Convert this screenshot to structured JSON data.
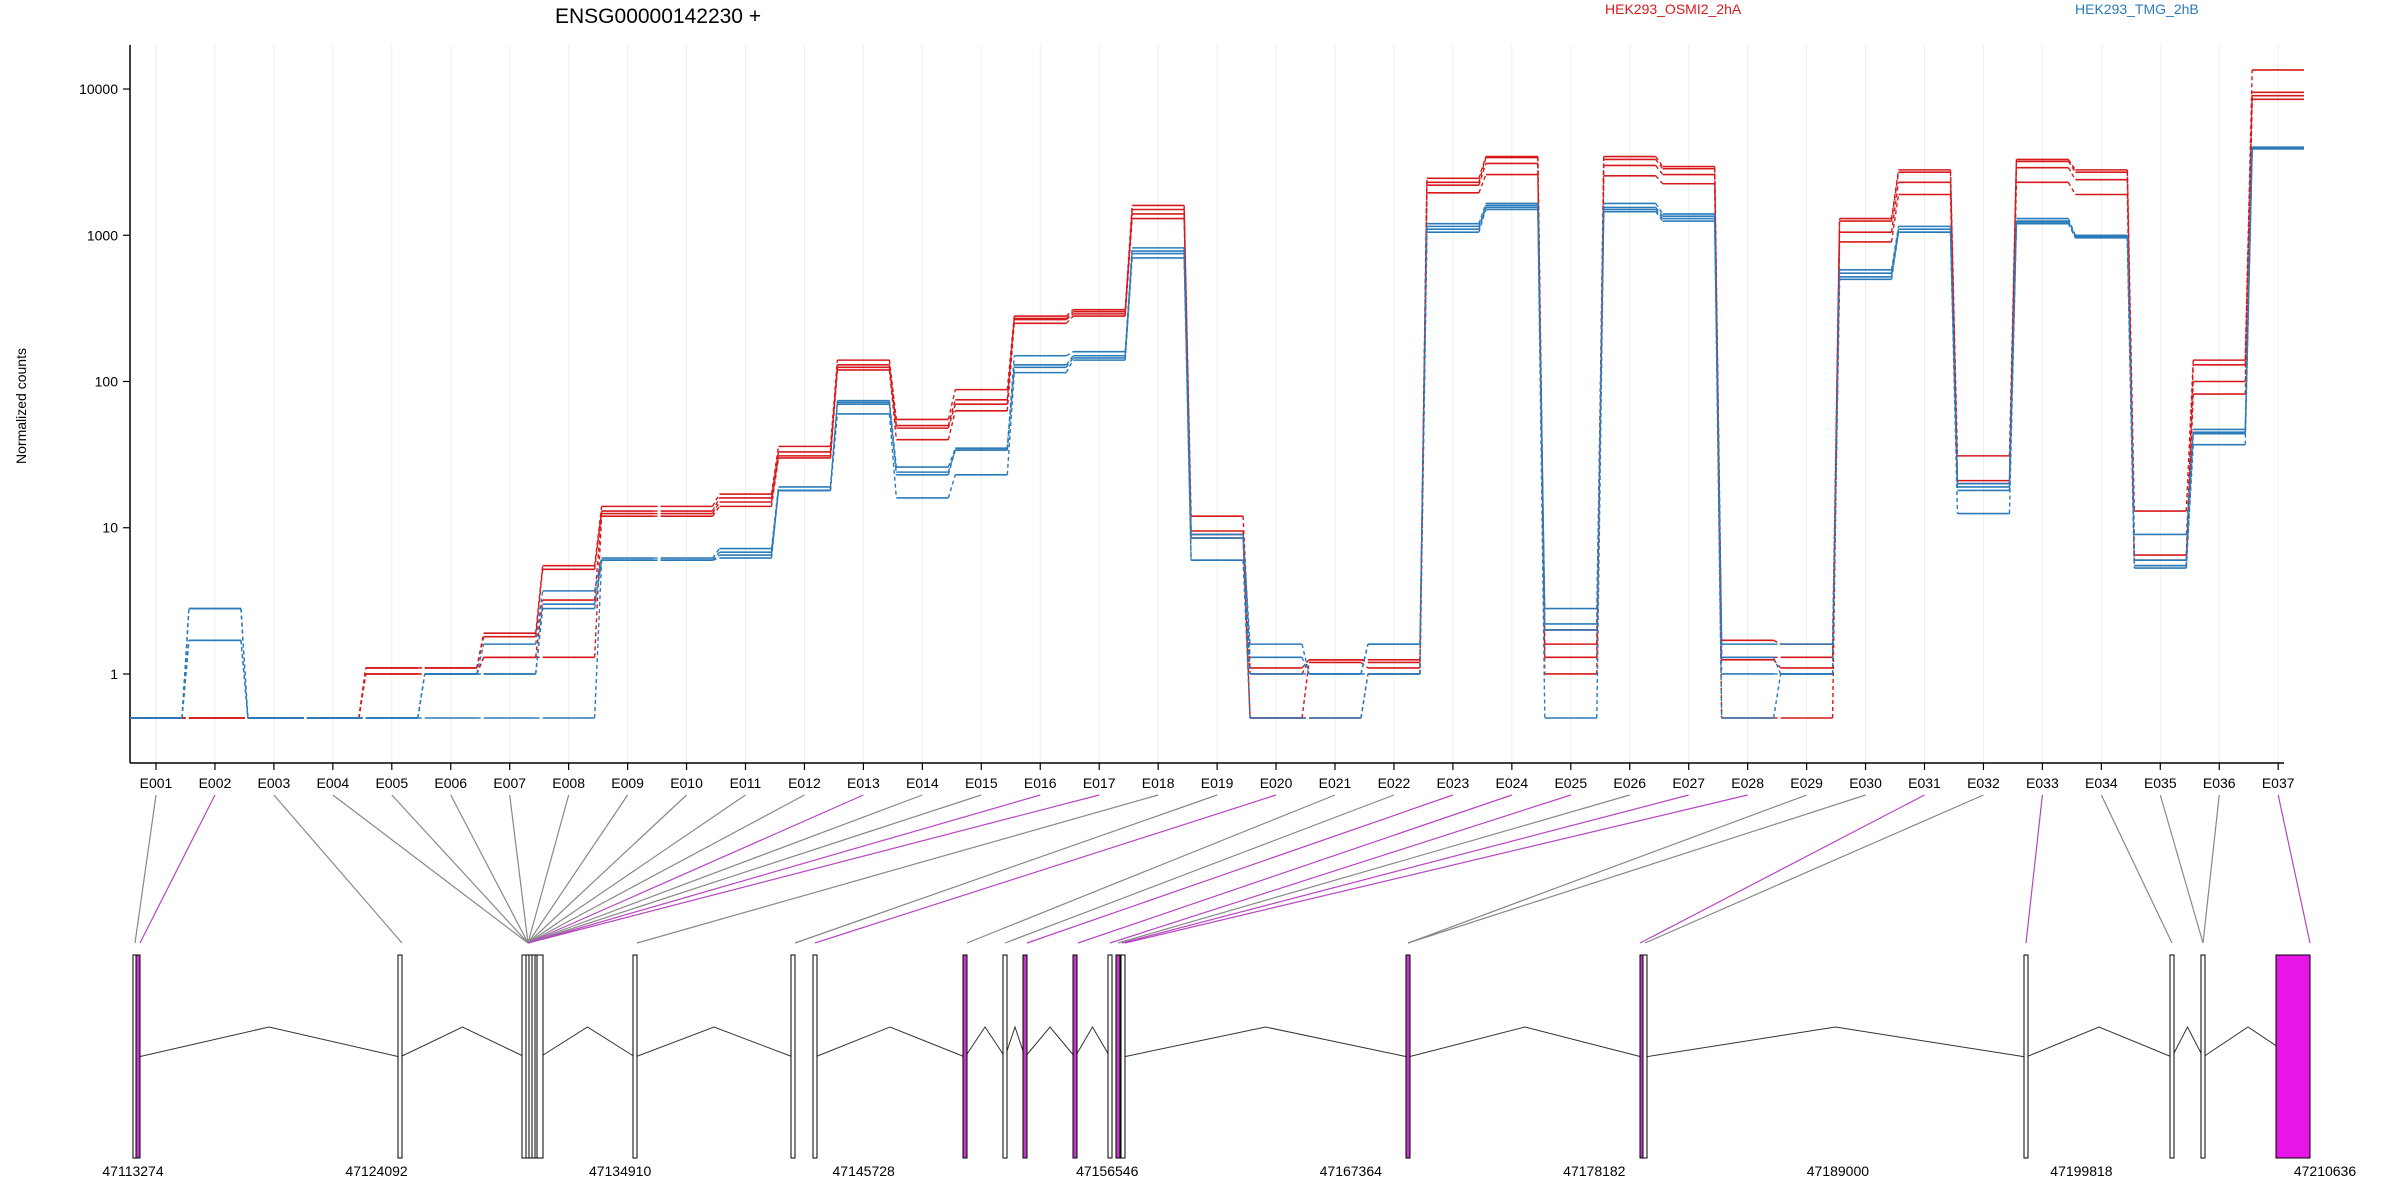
{
  "chart_data": {
    "type": "line",
    "title": "ENSG00000142230 +",
    "ylabel": "Normalized counts",
    "yscale": "log",
    "y_ticks": [
      1,
      10,
      100,
      1000,
      10000
    ],
    "y_tick_labels": [
      "1",
      "10",
      "100",
      "1000",
      "10000"
    ],
    "categories": [
      "E001",
      "E002",
      "E003",
      "E004",
      "E005",
      "E006",
      "E007",
      "E008",
      "E009",
      "E010",
      "E011",
      "E012",
      "E013",
      "E014",
      "E015",
      "E016",
      "E017",
      "E018",
      "E019",
      "E020",
      "E021",
      "E022",
      "E023",
      "E024",
      "E025",
      "E026",
      "E027",
      "E028",
      "E029",
      "E030",
      "E031",
      "E032",
      "E033",
      "E034",
      "E035",
      "E036",
      "E037"
    ],
    "legend": [
      {
        "name": "HEK293_OSMI2_2hA",
        "color": "#d7191c"
      },
      {
        "name": "HEK293_TMG_2hB",
        "color": "#2b7bba"
      }
    ],
    "series": [
      {
        "group": "red",
        "values": [
          0.5,
          0.5,
          0.5,
          0.5,
          1.1,
          1.1,
          1.9,
          5.5,
          14,
          14,
          17,
          36,
          140,
          55,
          88,
          280,
          310,
          1600,
          12,
          1.1,
          1.25,
          1.25,
          2450,
          3450,
          1.3,
          3450,
          2950,
          1.25,
          1.1,
          1300,
          2800,
          31,
          3300,
          2800,
          13,
          140,
          13500
        ]
      },
      {
        "group": "red",
        "values": [
          0.5,
          0.5,
          0.5,
          0.5,
          1.1,
          1.1,
          1.8,
          5.2,
          13,
          13,
          16,
          33,
          130,
          50,
          75,
          270,
          300,
          1500,
          9.5,
          1.0,
          1.25,
          1.2,
          2300,
          3400,
          2.0,
          3300,
          2850,
          1.7,
          1.6,
          1250,
          2700,
          21,
          3200,
          2700,
          6.5,
          130,
          9500
        ]
      },
      {
        "group": "red",
        "values": [
          0.5,
          0.5,
          0.5,
          0.5,
          1.0,
          1.0,
          1.3,
          3.2,
          12.5,
          12.5,
          15,
          31,
          125,
          48,
          70,
          265,
          290,
          1400,
          9,
          0.5,
          1.2,
          1.1,
          2200,
          3100,
          1.6,
          3000,
          2600,
          1.3,
          1.3,
          1050,
          2300,
          20,
          2900,
          2400,
          6,
          100,
          9000
        ]
      },
      {
        "group": "red",
        "values": [
          0.5,
          0.5,
          0.5,
          0.5,
          1.0,
          1.0,
          1.3,
          1.3,
          12,
          12,
          14,
          30,
          120,
          40,
          63,
          250,
          280,
          1300,
          8.5,
          0.5,
          0.5,
          1.0,
          1950,
          2600,
          1.0,
          2550,
          2250,
          0.5,
          0.5,
          900,
          1900,
          20,
          2300,
          1900,
          5.5,
          82,
          8500
        ]
      },
      {
        "group": "blue",
        "values": [
          0.5,
          2.8,
          0.5,
          0.5,
          0.5,
          1.0,
          1.6,
          3.7,
          6.2,
          6.2,
          7.2,
          19,
          74,
          26,
          35,
          150,
          160,
          820,
          9,
          1.6,
          1.0,
          1.6,
          1200,
          1650,
          2.8,
          1650,
          1400,
          1.6,
          1.6,
          580,
          1150,
          20,
          1300,
          1000,
          9,
          47,
          4000
        ]
      },
      {
        "group": "blue",
        "values": [
          0.5,
          2.8,
          0.5,
          0.5,
          0.5,
          1.0,
          1.0,
          3.0,
          6.0,
          6.0,
          6.8,
          18,
          72,
          24,
          34,
          130,
          150,
          780,
          8.5,
          1.3,
          1.0,
          1.6,
          1150,
          1600,
          2.2,
          1550,
          1350,
          1.3,
          1.0,
          550,
          1100,
          19,
          1250,
          980,
          6,
          45,
          3950
        ]
      },
      {
        "group": "blue",
        "values": [
          0.5,
          1.7,
          0.5,
          0.5,
          0.5,
          1.0,
          1.0,
          2.8,
          6.0,
          6.0,
          6.5,
          18,
          70,
          23,
          34,
          125,
          145,
          750,
          6,
          1.0,
          1.0,
          1.0,
          1100,
          1550,
          2.0,
          1500,
          1300,
          1.0,
          1.0,
          520,
          1050,
          18,
          1230,
          970,
          5.5,
          44,
          3900
        ]
      },
      {
        "group": "blue",
        "values": [
          0.5,
          1.7,
          0.5,
          0.5,
          0.5,
          0.5,
          0.5,
          0.5,
          6.0,
          6.0,
          6.2,
          18,
          60,
          16,
          23,
          115,
          140,
          700,
          6,
          0.5,
          0.5,
          1.0,
          1050,
          1500,
          0.5,
          1450,
          1250,
          0.5,
          1.0,
          500,
          1050,
          12.5,
          1200,
          960,
          5.3,
          37,
          3900
        ]
      }
    ],
    "exon_grid_labels": [
      "E001",
      "E002",
      "E003",
      "E004",
      "E005",
      "E006",
      "E007",
      "E008",
      "E009",
      "E010",
      "E011",
      "E012",
      "E013",
      "E014",
      "E015",
      "E016",
      "E017",
      "E018",
      "E019",
      "E020",
      "E021",
      "E022",
      "E023",
      "E024",
      "E025",
      "E026",
      "E027",
      "E028",
      "E029",
      "E030",
      "E031",
      "E032",
      "E033",
      "E034",
      "E035",
      "E036",
      "E037"
    ],
    "highlighted_exons": [
      "E002",
      "E013",
      "E016",
      "E017",
      "E020",
      "E023",
      "E024",
      "E025",
      "E027",
      "E028",
      "E031",
      "E033",
      "E037"
    ],
    "gene_model": {
      "coord_labels": [
        "47113274",
        "47124092",
        "47134910",
        "47145728",
        "47156546",
        "47167364",
        "47178182",
        "47189000",
        "47199818",
        "47210636"
      ],
      "exon_colors": {
        "normal": "#ffffff",
        "highlight": "#e815e8",
        "outline": "#000000"
      }
    }
  }
}
